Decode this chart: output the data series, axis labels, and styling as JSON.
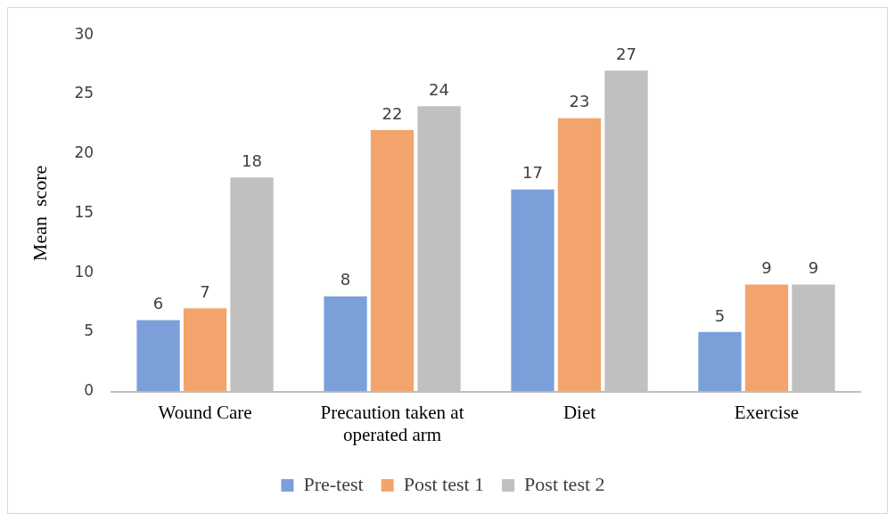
{
  "chart_data": {
    "type": "bar",
    "ylabel": "Mean  score",
    "categories": [
      "Wound Care",
      "Precaution taken at operated arm",
      "Diet",
      "Exercise"
    ],
    "series": [
      {
        "name": "Pre-test",
        "color": "#7b9fd9",
        "values": [
          6,
          8,
          17,
          5
        ]
      },
      {
        "name": "Post test 1",
        "color": "#f3a46c",
        "values": [
          7,
          22,
          23,
          9
        ]
      },
      {
        "name": "Post test 2",
        "color": "#c0c0c0",
        "values": [
          18,
          24,
          27,
          9
        ]
      }
    ],
    "ylim": [
      0,
      30
    ],
    "yticks": [
      0,
      5,
      10,
      15,
      20,
      25,
      30
    ],
    "grid": false,
    "legend": "bottom",
    "data_labels": true
  }
}
